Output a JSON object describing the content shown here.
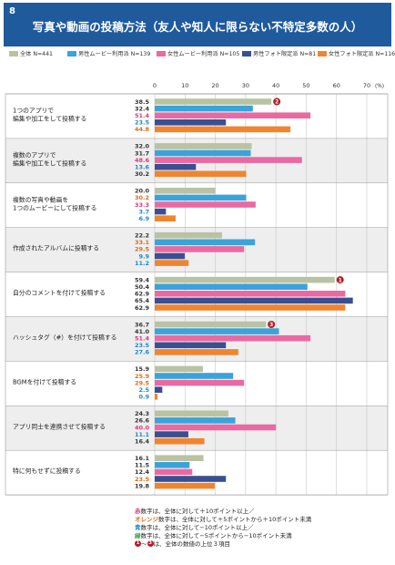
{
  "page_number": "8",
  "title": "写真や動画の投稿方法（友人や知人に限らない不特定多数の人）",
  "colors": {
    "header": "#1f5a9c",
    "series": [
      "#b9c3a3",
      "#3aa3da",
      "#e96aa2",
      "#3a4e92",
      "#f08530"
    ],
    "value_text": [
      "#333333",
      "#1e87c8",
      "#d63a7e",
      "#1e87c8",
      "#e06a10"
    ],
    "rank_badge": "#b51d26",
    "row_alt": "#eeeeee",
    "grid": "#c8c8c8"
  },
  "chart_data": {
    "type": "bar",
    "orientation": "horizontal",
    "unit": "(%)",
    "xlim": [
      0,
      70
    ],
    "x_ticks": [
      "0",
      "10",
      "20",
      "30",
      "40",
      "50",
      "60",
      "70"
    ],
    "grid": true,
    "legend_position": "top",
    "series": [
      {
        "name": "全体 N=441",
        "values": [
          38.5,
          32.0,
          20.0,
          22.2,
          59.4,
          36.7,
          15.9,
          24.3,
          16.1
        ]
      },
      {
        "name": "男性ムービー利用派 N=139",
        "values": [
          32.4,
          31.7,
          30.2,
          33.1,
          50.4,
          41.0,
          25.9,
          26.6,
          11.5
        ]
      },
      {
        "name": "女性ムービー利用派 N=105",
        "values": [
          51.4,
          48.6,
          33.3,
          29.5,
          62.9,
          51.4,
          29.5,
          40.0,
          12.4
        ]
      },
      {
        "name": "男性フォト限定派 N=81",
        "values": [
          23.5,
          13.6,
          3.7,
          9.9,
          65.4,
          23.5,
          2.5,
          11.1,
          23.5
        ]
      },
      {
        "name": "女性フォト限定派 N=116",
        "values": [
          44.8,
          30.2,
          6.9,
          11.2,
          62.9,
          27.6,
          0.9,
          16.4,
          19.8
        ]
      }
    ],
    "value_labels": [
      [
        "38.5",
        "32.4",
        "51.4",
        "23.5",
        "44.8"
      ],
      [
        "32.0",
        "31.7",
        "48.6",
        "13.6",
        "30.2"
      ],
      [
        "20.0",
        "30.2",
        "33.3",
        "3.7",
        "6.9"
      ],
      [
        "22.2",
        "33.1",
        "29.5",
        "9.9",
        "11.2"
      ],
      [
        "59.4",
        "50.4",
        "62.9",
        "65.4",
        "62.9"
      ],
      [
        "36.7",
        "41.0",
        "51.4",
        "23.5",
        "27.6"
      ],
      [
        "15.9",
        "25.9",
        "29.5",
        "2.5",
        "0.9"
      ],
      [
        "24.3",
        "26.6",
        "40.0",
        "11.1",
        "16.4"
      ],
      [
        "16.1",
        "11.5",
        "12.4",
        "23.5",
        "19.8"
      ]
    ],
    "value_label_colors": [
      [
        0,
        0,
        2,
        3,
        4
      ],
      [
        0,
        0,
        2,
        3,
        0
      ],
      [
        0,
        4,
        2,
        3,
        3
      ],
      [
        0,
        4,
        4,
        3,
        3
      ],
      [
        0,
        0,
        0,
        0,
        0
      ],
      [
        0,
        0,
        2,
        3,
        3
      ],
      [
        0,
        4,
        4,
        3,
        3
      ],
      [
        0,
        0,
        2,
        3,
        0
      ],
      [
        0,
        0,
        0,
        4,
        0
      ]
    ],
    "categories": [
      [
        "1つのアプリで",
        "編集や加工をして投稿する"
      ],
      [
        "複数のアプリで",
        "編集や加工をして投稿する"
      ],
      [
        "複数の写真や動画を",
        "1つのムービーにして投稿する"
      ],
      [
        "作成されたアルバムに投稿する"
      ],
      [
        "自分のコメントを付けて投稿する"
      ],
      [
        "ハッシュタグ（#）を付けて投稿する"
      ],
      [
        "BGMを付けて投稿する"
      ],
      [
        "アプリ同士を連携させて投稿する"
      ],
      [
        "特に何もせずに投稿する"
      ]
    ],
    "rank_annotations": [
      {
        "category_index": 4,
        "series_index": 0,
        "rank": "1"
      },
      {
        "category_index": 0,
        "series_index": 0,
        "rank": "2"
      },
      {
        "category_index": 5,
        "series_index": 0,
        "rank": "3"
      }
    ]
  },
  "notes": [
    {
      "prefix": "赤",
      "text": "数字は、全体に対して＋10ポイント以上／",
      "color": "#d63a7e"
    },
    {
      "prefix": "オレンジ",
      "text": "数字は、全体に対して＋5ポイントから＋10ポイント未満",
      "color": "#e06a10"
    },
    {
      "prefix": "青",
      "text": "数字は、全体に対して−10ポイント以上／",
      "color": "#1e87c8"
    },
    {
      "prefix": "緑",
      "text": "数字は、全体に対して−5ポイントから−10ポイント未満",
      "color": "#3a9a4a"
    }
  ],
  "rank_note": {
    "badge_start": "1",
    "tilde": "〜",
    "badge_end": "3",
    "text": "は、全体の数値の上位３項目"
  }
}
